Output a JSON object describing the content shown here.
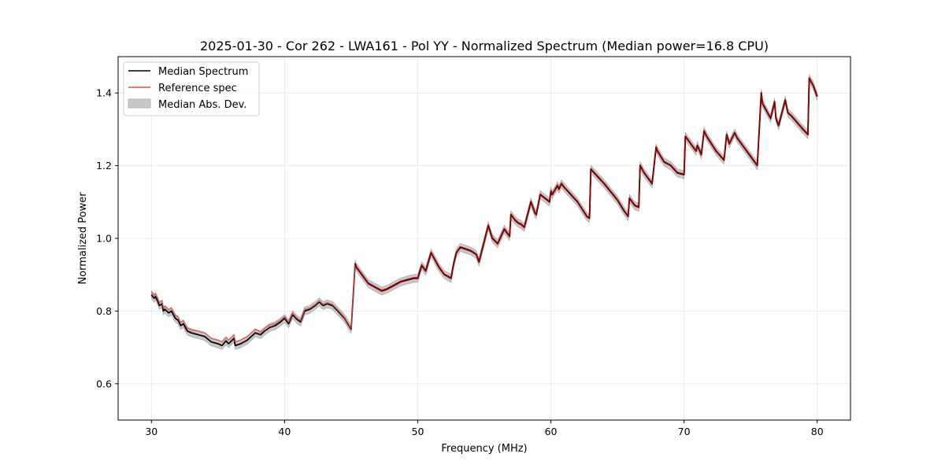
{
  "chart_data": {
    "type": "line",
    "title": "2025-01-30 - Cor 262 - LWA161 - Pol YY - Normalized Spectrum (Median power=16.8 CPU)",
    "xlabel": "Frequency (MHz)",
    "ylabel": "Normalized Power",
    "xlim": [
      27.5,
      82.5
    ],
    "ylim": [
      0.5,
      1.5
    ],
    "xticks": [
      30,
      40,
      50,
      60,
      70,
      80
    ],
    "yticks": [
      0.6,
      0.8,
      1.0,
      1.2,
      1.4
    ],
    "xtick_labels": [
      "30",
      "40",
      "50",
      "60",
      "70",
      "80"
    ],
    "ytick_labels": [
      "0.6",
      "0.8",
      "1.0",
      "1.2",
      "1.4"
    ],
    "grid": true,
    "legend_position": "top-left",
    "legend": [
      "Median Spectrum",
      "Reference spec",
      "Median Abs. Dev."
    ],
    "colors": {
      "median": "#000000",
      "reference": "#e8494a",
      "reference_over": "#8b0000",
      "band": "#b4b4b4",
      "grid": "#e6e6e6"
    },
    "band_halfwidth": 0.011,
    "series": [
      {
        "name": "Median Spectrum",
        "x": [
          30.0,
          30.2,
          30.3,
          30.5,
          30.6,
          30.8,
          30.9,
          31.0,
          31.3,
          31.5,
          31.8,
          32.0,
          32.2,
          32.4,
          32.7,
          33.0,
          33.5,
          34.0,
          34.5,
          35.0,
          35.3,
          35.6,
          35.8,
          36.2,
          36.3,
          36.7,
          37.2,
          37.5,
          37.8,
          38.2,
          38.5,
          38.9,
          39.3,
          39.7,
          40.0,
          40.3,
          40.6,
          40.9,
          41.2,
          41.5,
          41.9,
          42.3,
          42.6,
          42.9,
          43.2,
          43.6,
          44.0,
          44.5,
          45.0,
          45.3,
          45.4,
          45.8,
          46.3,
          46.8,
          47.3,
          47.7,
          48.2,
          48.7,
          49.2,
          49.7,
          50.0,
          50.3,
          50.6,
          51.0,
          51.3,
          51.6,
          52.0,
          52.5,
          52.7,
          52.9,
          53.2,
          53.6,
          54.0,
          54.4,
          54.6,
          55.3,
          55.6,
          56.0,
          56.5,
          56.9,
          57.0,
          57.3,
          57.6,
          57.7,
          58.0,
          58.5,
          58.8,
          58.9,
          59.2,
          59.9,
          60.0,
          60.1,
          60.5,
          60.6,
          60.8,
          61.0,
          62.0,
          62.7,
          62.9,
          63.0,
          64.0,
          65.0,
          65.5,
          65.8,
          65.9,
          66.3,
          66.6,
          66.7,
          67.0,
          67.6,
          67.9,
          68.0,
          68.5,
          69.0,
          69.5,
          70.0,
          70.1,
          70.7,
          70.9,
          71.0,
          71.3,
          71.5,
          71.7,
          72.4,
          73.0,
          73.2,
          73.4,
          73.8,
          74.0,
          74.5,
          75.0,
          75.5,
          75.8,
          75.9,
          76.5,
          76.8,
          76.9,
          77.1,
          77.6,
          77.8,
          78.1,
          78.8,
          79.3,
          79.4,
          79.7,
          80.0
        ],
        "y": [
          0.845,
          0.835,
          0.84,
          0.825,
          0.815,
          0.82,
          0.8,
          0.805,
          0.795,
          0.8,
          0.78,
          0.775,
          0.76,
          0.765,
          0.745,
          0.74,
          0.735,
          0.73,
          0.715,
          0.71,
          0.705,
          0.718,
          0.71,
          0.725,
          0.705,
          0.71,
          0.72,
          0.73,
          0.74,
          0.735,
          0.745,
          0.755,
          0.76,
          0.77,
          0.78,
          0.765,
          0.79,
          0.778,
          0.77,
          0.8,
          0.805,
          0.815,
          0.825,
          0.815,
          0.82,
          0.815,
          0.8,
          0.78,
          0.75,
          0.93,
          0.92,
          0.9,
          0.875,
          0.865,
          0.855,
          0.86,
          0.87,
          0.88,
          0.885,
          0.89,
          0.89,
          0.925,
          0.91,
          0.96,
          0.94,
          0.92,
          0.9,
          0.89,
          0.93,
          0.96,
          0.975,
          0.97,
          0.965,
          0.955,
          0.935,
          1.035,
          1.0,
          0.985,
          1.025,
          1.005,
          1.065,
          1.05,
          1.04,
          1.04,
          1.03,
          1.1,
          1.07,
          1.065,
          1.12,
          1.1,
          1.13,
          1.12,
          1.145,
          1.135,
          1.15,
          1.14,
          1.1,
          1.06,
          1.055,
          1.19,
          1.15,
          1.105,
          1.075,
          1.06,
          1.11,
          1.09,
          1.085,
          1.2,
          1.18,
          1.15,
          1.25,
          1.24,
          1.21,
          1.2,
          1.18,
          1.175,
          1.28,
          1.25,
          1.24,
          1.255,
          1.23,
          1.295,
          1.28,
          1.24,
          1.215,
          1.285,
          1.26,
          1.29,
          1.275,
          1.25,
          1.225,
          1.2,
          1.4,
          1.37,
          1.33,
          1.375,
          1.33,
          1.31,
          1.38,
          1.345,
          1.335,
          1.305,
          1.285,
          1.44,
          1.42,
          1.39
        ]
      },
      {
        "name": "Reference spec",
        "x": [
          30.0,
          30.2,
          30.3,
          30.5,
          30.6,
          30.8,
          30.9,
          31.0,
          31.3,
          31.5,
          31.8,
          32.0,
          32.2,
          32.4,
          32.7,
          33.0,
          33.5,
          34.0,
          34.5,
          35.0,
          35.3,
          35.6,
          35.8,
          36.2,
          36.3,
          36.7,
          37.2,
          37.5,
          37.8,
          38.2,
          38.5,
          38.9,
          39.3,
          39.7,
          40.0,
          40.3,
          40.6,
          40.9,
          41.2,
          41.5,
          41.9,
          42.3,
          42.6,
          42.9,
          43.2,
          43.6,
          44.0,
          44.5,
          45.0,
          45.3,
          45.4,
          45.8,
          46.3,
          46.8,
          47.3,
          47.7,
          48.2,
          48.7,
          49.2,
          49.7,
          50.0,
          50.3,
          50.6,
          51.0,
          51.3,
          51.6,
          52.0,
          52.5,
          52.7,
          52.9,
          53.2,
          53.6,
          54.0,
          54.4,
          54.6,
          55.3,
          55.6,
          56.0,
          56.5,
          56.9,
          57.0,
          57.3,
          57.6,
          57.7,
          58.0,
          58.5,
          58.8,
          58.9,
          59.2,
          59.9,
          60.0,
          60.1,
          60.5,
          60.6,
          60.8,
          61.0,
          62.0,
          62.7,
          62.9,
          63.0,
          64.0,
          65.0,
          65.5,
          65.8,
          65.9,
          66.3,
          66.6,
          66.7,
          67.0,
          67.6,
          67.9,
          68.0,
          68.5,
          69.0,
          69.5,
          70.0,
          70.1,
          70.7,
          70.9,
          71.0,
          71.3,
          71.5,
          71.7,
          72.4,
          73.0,
          73.2,
          73.4,
          73.8,
          74.0,
          74.5,
          75.0,
          75.5,
          75.8,
          75.9,
          76.5,
          76.8,
          76.9,
          77.1,
          77.6,
          77.8,
          78.1,
          78.8,
          79.3,
          79.4,
          79.7,
          80.0
        ],
        "y": [
          0.853,
          0.843,
          0.848,
          0.833,
          0.823,
          0.828,
          0.808,
          0.813,
          0.803,
          0.808,
          0.788,
          0.783,
          0.768,
          0.773,
          0.753,
          0.748,
          0.745,
          0.74,
          0.725,
          0.72,
          0.715,
          0.728,
          0.72,
          0.735,
          0.715,
          0.72,
          0.73,
          0.74,
          0.75,
          0.742,
          0.752,
          0.762,
          0.765,
          0.775,
          0.785,
          0.77,
          0.795,
          0.782,
          0.774,
          0.804,
          0.808,
          0.818,
          0.828,
          0.818,
          0.823,
          0.818,
          0.803,
          0.782,
          0.752,
          0.932,
          0.922,
          0.902,
          0.877,
          0.867,
          0.857,
          0.862,
          0.872,
          0.882,
          0.887,
          0.892,
          0.892,
          0.927,
          0.912,
          0.962,
          0.942,
          0.922,
          0.902,
          0.892,
          0.932,
          0.962,
          0.977,
          0.972,
          0.967,
          0.957,
          0.937,
          1.037,
          1.002,
          0.987,
          1.027,
          1.007,
          1.067,
          1.052,
          1.042,
          1.042,
          1.032,
          1.102,
          1.072,
          1.067,
          1.122,
          1.102,
          1.132,
          1.122,
          1.147,
          1.137,
          1.152,
          1.142,
          1.102,
          1.062,
          1.057,
          1.192,
          1.152,
          1.107,
          1.077,
          1.062,
          1.112,
          1.092,
          1.087,
          1.202,
          1.182,
          1.152,
          1.252,
          1.242,
          1.212,
          1.202,
          1.182,
          1.177,
          1.282,
          1.252,
          1.242,
          1.257,
          1.232,
          1.297,
          1.282,
          1.242,
          1.217,
          1.287,
          1.262,
          1.292,
          1.277,
          1.252,
          1.227,
          1.202,
          1.402,
          1.372,
          1.332,
          1.377,
          1.332,
          1.312,
          1.382,
          1.347,
          1.337,
          1.307,
          1.287,
          1.442,
          1.422,
          1.392
        ]
      }
    ]
  }
}
